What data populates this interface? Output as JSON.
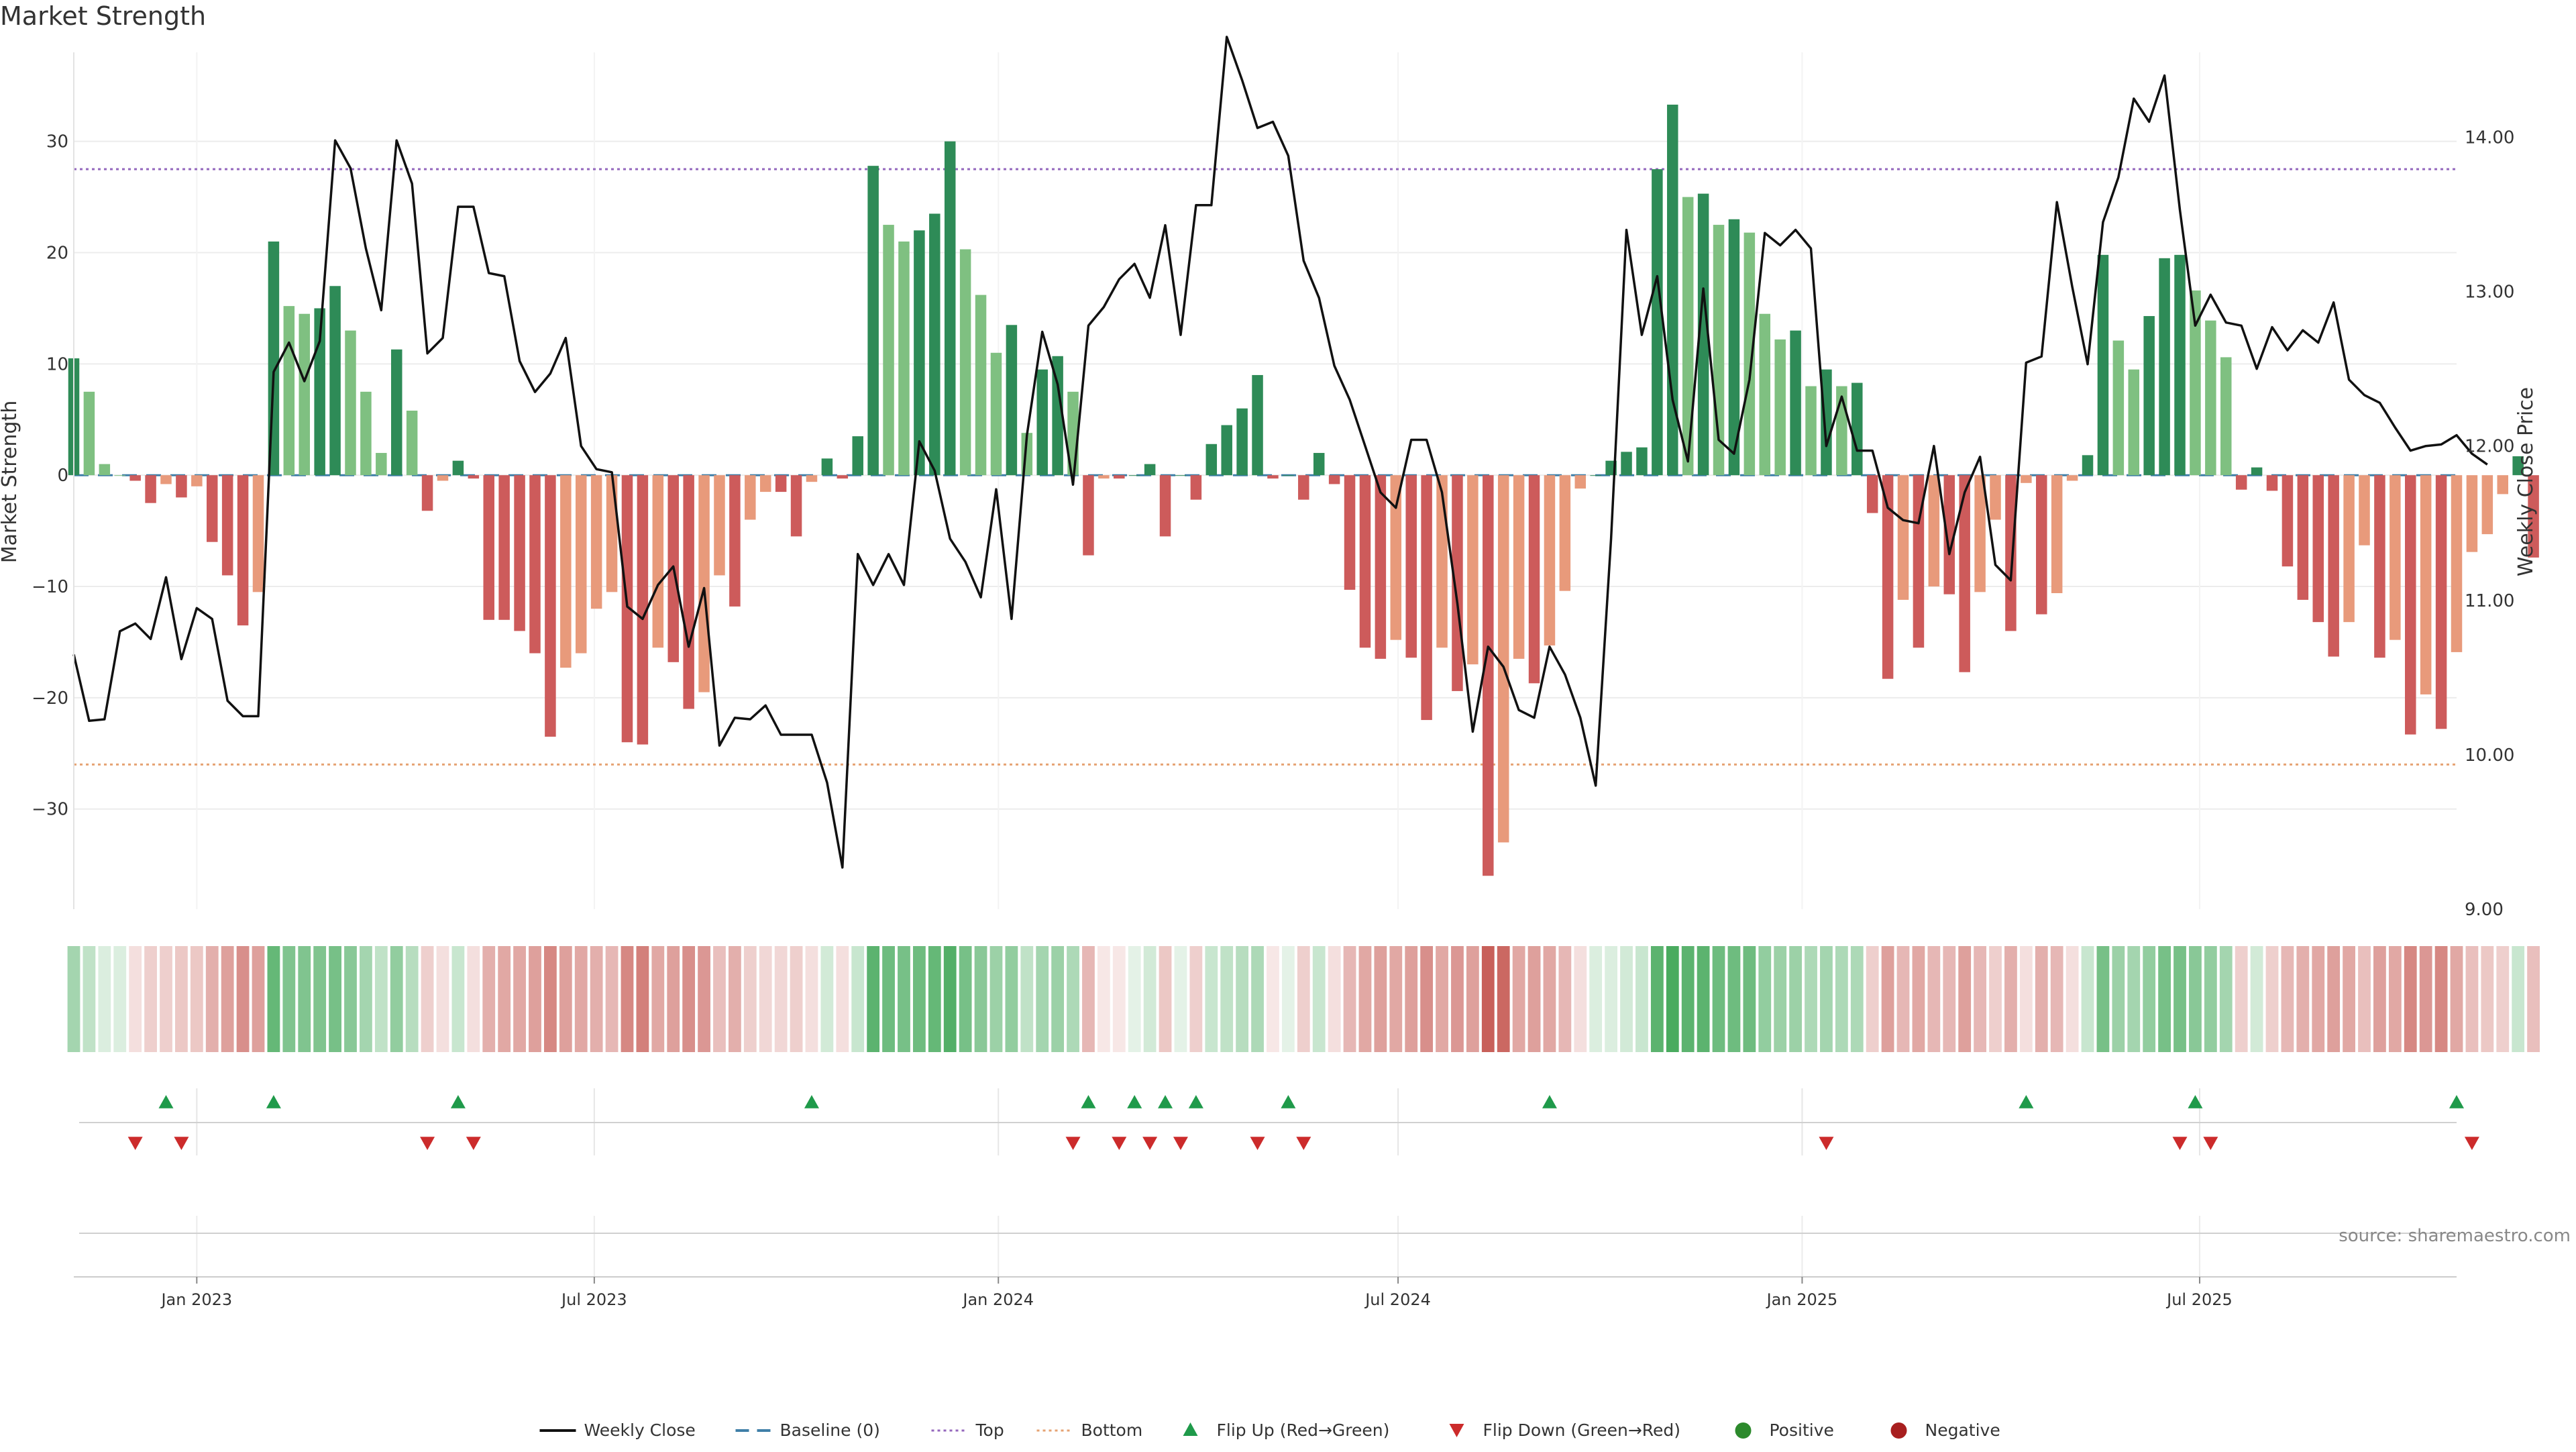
{
  "chart_data": {
    "type": "bar",
    "title": "Market Strength",
    "source": "source: sharemaestro.com",
    "ylabel_left": "Market Strength",
    "ylabel_right": "Weekly Close Price",
    "ylim_left": [
      -39,
      38
    ],
    "ylim_right": [
      9.0,
      14.55
    ],
    "yticks_left": [
      30,
      20,
      10,
      0,
      -10,
      -20,
      -30
    ],
    "ytick_labels_left": [
      "30",
      "20",
      "10",
      "0",
      "−10",
      "−20",
      "−30"
    ],
    "yticks_right": [
      14,
      13,
      12,
      11,
      10,
      9
    ],
    "ytick_labels_right": [
      "14.00",
      "13.00",
      "12.00",
      "11.00",
      "10.00",
      "9.00"
    ],
    "x_start": "2022-11-06",
    "x_end": "2025-10-26",
    "xticks": [
      {
        "date": "2023-01-01",
        "label": "Jan 2023"
      },
      {
        "date": "2023-07-01",
        "label": "Jul 2023"
      },
      {
        "date": "2024-01-01",
        "label": "Jan 2024"
      },
      {
        "date": "2024-07-01",
        "label": "Jul 2024"
      },
      {
        "date": "2025-01-01",
        "label": "Jan 2025"
      },
      {
        "date": "2025-07-01",
        "label": "Jul 2025"
      }
    ],
    "top_level": 27.5,
    "bottom_level": -26,
    "first_week": "2022-11-06",
    "week_step_days": 7,
    "strength": [
      10.5,
      7.5,
      1,
      0,
      -0.5,
      -2.5,
      -0.8,
      -2,
      -1,
      -6,
      -9,
      -13.5,
      -10.5,
      21,
      15.2,
      14.5,
      15,
      17,
      13,
      7.5,
      2,
      11.3,
      5.8,
      -3.2,
      -0.5,
      1.3,
      -0.3,
      -13,
      -13,
      -14,
      -16,
      -23.5,
      -17.3,
      -16,
      -12,
      -10.5,
      -24,
      -24.2,
      -15.5,
      -16.8,
      -21,
      -19.5,
      -9,
      -11.8,
      -4,
      -1.5,
      -1.5,
      -5.5,
      -0.6,
      1.5,
      -0.3,
      3.5,
      27.8,
      22.5,
      21,
      22,
      23.5,
      30,
      20.3,
      16.2,
      11,
      13.5,
      3.8,
      9.5,
      10.7,
      7.5,
      -7.2,
      -0.3,
      -0.3,
      0,
      1,
      -5.5,
      0,
      -2.2,
      2.8,
      4.5,
      6,
      9,
      -0.3,
      0,
      -2.2,
      2,
      -0.8,
      -10.3,
      -15.5,
      -16.5,
      -14.8,
      -16.4,
      -22,
      -15.5,
      -19.4,
      -17,
      -36,
      -33,
      -16.5,
      -18.7,
      -15.3,
      -10.4,
      -1.2,
      0,
      1.3,
      2.1,
      2.5,
      27.5,
      33.3,
      25,
      25.3,
      22.5,
      23,
      21.8,
      14.5,
      12.2,
      13,
      8,
      9.5,
      8,
      8.3,
      -3.4,
      -18.3,
      -11.2,
      -15.5,
      -10,
      -10.7,
      -17.7,
      -10.5,
      -4,
      -14,
      -0.7,
      -12.5,
      -10.6,
      -0.5,
      1.8,
      19.8,
      12.1,
      9.5,
      14.3,
      19.5,
      19.8,
      16.6,
      13.9,
      10.6,
      -1.3,
      0.7,
      -1.4,
      -8.2,
      -11.2,
      -13.2,
      -16.3,
      -13.2,
      -6.3,
      -16.4,
      -14.8,
      -23.3,
      -19.7,
      -22.8,
      -15.9,
      -6.9,
      -5.3,
      -1.7,
      1.7,
      -7.4
    ],
    "close": [
      10.65,
      10.22,
      10.23,
      10.8,
      10.85,
      10.75,
      11.15,
      10.62,
      10.95,
      10.88,
      10.35,
      10.25,
      10.25,
      12.48,
      12.67,
      12.42,
      12.68,
      13.98,
      13.8,
      13.28,
      12.88,
      13.98,
      13.7,
      12.6,
      12.7,
      13.55,
      13.55,
      13.12,
      13.1,
      12.55,
      12.35,
      12.47,
      12.7,
      12.0,
      11.85,
      11.83,
      10.96,
      10.88,
      11.1,
      11.22,
      10.7,
      11.08,
      10.06,
      10.24,
      10.23,
      10.32,
      10.13,
      10.13,
      10.13,
      9.82,
      9.27,
      11.3,
      11.1,
      11.3,
      11.1,
      12.03,
      11.84,
      11.4,
      11.25,
      11.02,
      11.72,
      10.88,
      12.07,
      12.74,
      12.4,
      11.75,
      12.78,
      12.9,
      13.08,
      13.18,
      12.96,
      13.43,
      12.72,
      13.56,
      13.56,
      14.65,
      14.37,
      14.06,
      14.1,
      13.88,
      13.2,
      12.96,
      12.52,
      12.3,
      12.0,
      11.7,
      11.6,
      12.04,
      12.04,
      11.7,
      10.98,
      10.15,
      10.7,
      10.57,
      10.29,
      10.24,
      10.7,
      10.52,
      10.24,
      9.8,
      11.4,
      13.4,
      12.72,
      13.1,
      12.3,
      11.9,
      13.02,
      12.04,
      11.95,
      12.43,
      13.38,
      13.3,
      13.4,
      13.28,
      12.0,
      12.32,
      11.97,
      11.97,
      11.6,
      11.52,
      11.5,
      12.0,
      11.3,
      11.7,
      11.93,
      11.23,
      11.13,
      12.54,
      12.58,
      13.58,
      13.03,
      12.53,
      13.45,
      13.74,
      14.25,
      14.1,
      14.4,
      13.53,
      12.78,
      12.98,
      12.8,
      12.78,
      12.5,
      12.77,
      12.62,
      12.75,
      12.67,
      12.93,
      12.43,
      12.33,
      12.28,
      12.12,
      11.97,
      12.0,
      12.01,
      12.07,
      11.95,
      11.88
    ],
    "strip_alpha": [
      0.5,
      0.35,
      0.2,
      0.2,
      0.2,
      0.3,
      0.3,
      0.35,
      0.35,
      0.5,
      0.6,
      0.7,
      0.6,
      0.85,
      0.7,
      0.7,
      0.7,
      0.75,
      0.65,
      0.5,
      0.35,
      0.6,
      0.4,
      0.3,
      0.2,
      0.3,
      0.2,
      0.5,
      0.55,
      0.55,
      0.6,
      0.75,
      0.6,
      0.55,
      0.5,
      0.45,
      0.75,
      0.8,
      0.55,
      0.6,
      0.7,
      0.65,
      0.4,
      0.5,
      0.3,
      0.25,
      0.25,
      0.3,
      0.2,
      0.25,
      0.2,
      0.3,
      0.9,
      0.8,
      0.75,
      0.8,
      0.85,
      0.95,
      0.75,
      0.65,
      0.55,
      0.6,
      0.35,
      0.5,
      0.55,
      0.45,
      0.45,
      0.15,
      0.15,
      0.15,
      0.25,
      0.35,
      0.15,
      0.3,
      0.3,
      0.35,
      0.4,
      0.45,
      0.15,
      0.15,
      0.3,
      0.3,
      0.2,
      0.45,
      0.55,
      0.6,
      0.55,
      0.6,
      0.7,
      0.55,
      0.65,
      0.6,
      1.0,
      0.95,
      0.55,
      0.6,
      0.55,
      0.45,
      0.2,
      0.2,
      0.2,
      0.25,
      0.3,
      0.9,
      1.0,
      0.9,
      0.9,
      0.8,
      0.8,
      0.8,
      0.6,
      0.55,
      0.55,
      0.45,
      0.5,
      0.45,
      0.45,
      0.3,
      0.6,
      0.45,
      0.55,
      0.45,
      0.45,
      0.6,
      0.45,
      0.3,
      0.5,
      0.2,
      0.5,
      0.45,
      0.2,
      0.3,
      0.75,
      0.55,
      0.5,
      0.6,
      0.75,
      0.75,
      0.65,
      0.6,
      0.5,
      0.3,
      0.25,
      0.3,
      0.45,
      0.5,
      0.55,
      0.6,
      0.55,
      0.4,
      0.6,
      0.55,
      0.75,
      0.65,
      0.75,
      0.55,
      0.4,
      0.35,
      0.3,
      0.3,
      0.4
    ],
    "flip_up_weeks": [
      6,
      13,
      25,
      48,
      66,
      69,
      71,
      73,
      79,
      96,
      127,
      138,
      155
    ],
    "flip_down_weeks": [
      4,
      7,
      23,
      26,
      65,
      68,
      70,
      72,
      77,
      80,
      114,
      137,
      139,
      156
    ],
    "colors": {
      "pos_strong": "#2e8b57",
      "pos_weak": "#7fc081",
      "neg_strong": "#cd5b5b",
      "neg_weak": "#e89a7b",
      "strip_pos": "#4aab5f",
      "strip_neg": "#c8605a",
      "close_line": "#111111",
      "baseline": "#3f7fa8",
      "top_line": "#9467bd",
      "bottom_line": "#e6a373",
      "flip_up": "#1f9a4a",
      "flip_down": "#cc2b2b",
      "positive_dot": "#2c8a2c",
      "negative_dot": "#a81f1f"
    },
    "legend": [
      {
        "label": "Weekly Close",
        "kind": "solid",
        "color": "#111111"
      },
      {
        "label": "Baseline (0)",
        "kind": "dashed",
        "color": "#3f7fa8"
      },
      {
        "label": "Top",
        "kind": "dotted",
        "color": "#9467bd"
      },
      {
        "label": "Bottom",
        "kind": "dotted",
        "color": "#e6a373"
      },
      {
        "label": "Flip Up (Red→Green)",
        "kind": "tri-up",
        "color": "#1f9a4a"
      },
      {
        "label": "Flip Down (Green→Red)",
        "kind": "tri-down",
        "color": "#cc2b2b"
      },
      {
        "label": "Positive",
        "kind": "dot",
        "color": "#2c8a2c"
      },
      {
        "label": "Negative",
        "kind": "dot",
        "color": "#a81f1f"
      }
    ],
    "legend_position": "bottom-center"
  }
}
